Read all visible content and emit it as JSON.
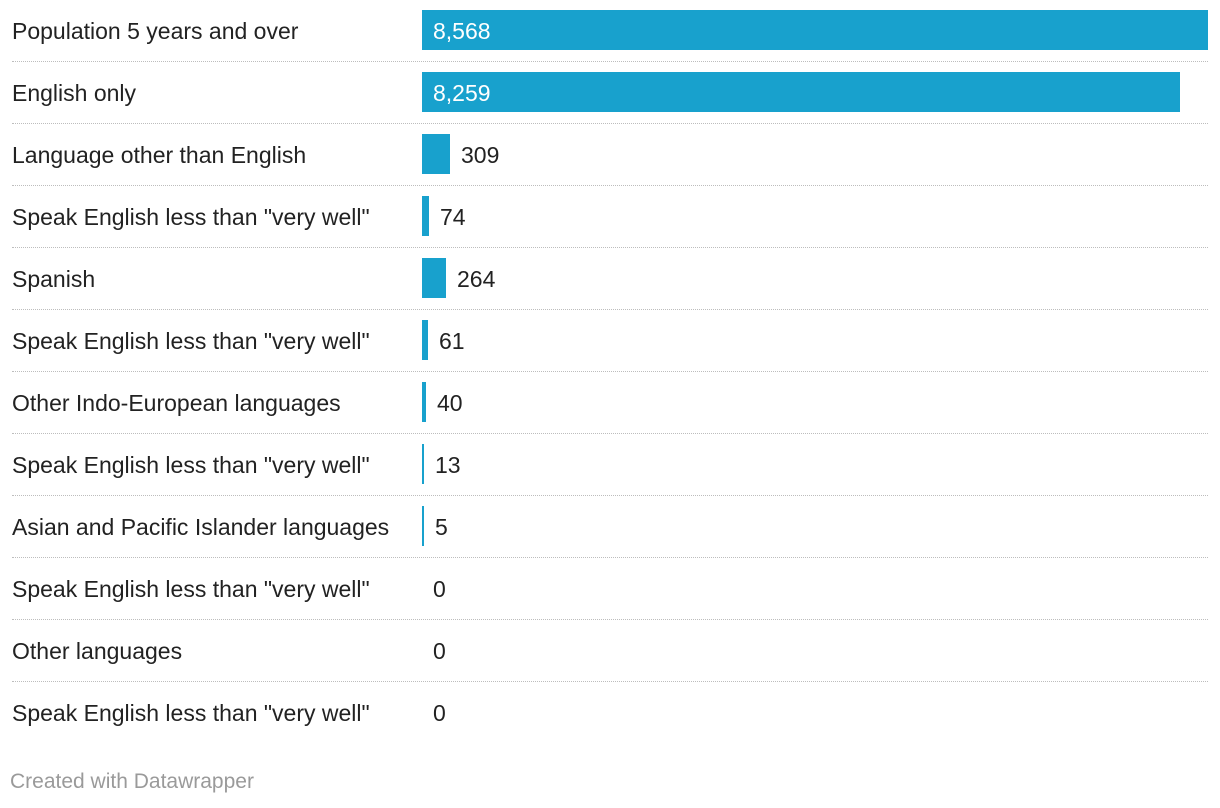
{
  "chart_data": {
    "type": "bar",
    "orientation": "horizontal",
    "categories": [
      "Population 5 years and over",
      "English only",
      "Language other than English",
      "Speak English less than \"very well\"",
      "Spanish",
      "Speak English less than \"very well\"",
      "Other Indo-European languages",
      "Speak English less than \"very well\"",
      "Asian and Pacific Islander languages",
      "Speak English less than \"very well\"",
      "Other languages",
      "Speak English less than \"very well\""
    ],
    "values": [
      8568,
      8259,
      309,
      74,
      264,
      61,
      40,
      13,
      5,
      0,
      0,
      0
    ],
    "value_labels": [
      "8,568",
      "8,259",
      "309",
      "74",
      "264",
      "61",
      "40",
      "13",
      "5",
      "0",
      "0",
      "0"
    ],
    "xlim": [
      0,
      8568
    ],
    "bar_color": "#18a1cd"
  },
  "footer": {
    "credit": "Created with Datawrapper"
  }
}
